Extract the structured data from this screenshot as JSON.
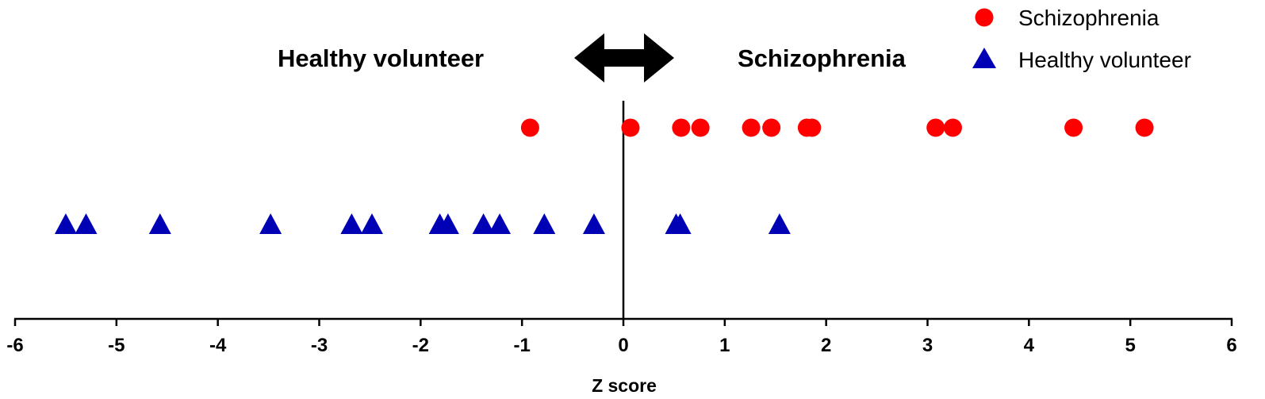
{
  "chart_data": {
    "type": "scatter",
    "title": "",
    "xlabel": "Z score",
    "ylabel": "",
    "xlim": [
      -6,
      6
    ],
    "x_ticks": [
      -6,
      -5,
      -4,
      -3,
      -2,
      -1,
      0,
      1,
      2,
      3,
      4,
      5,
      6
    ],
    "reference_line_x": 0,
    "grid": false,
    "legend_position": "top-right",
    "annotations": {
      "left": "Healthy volunteer",
      "right": "Schizophrenia",
      "arrow": "double-headed"
    },
    "series": [
      {
        "name": "Schizophrenia",
        "marker": "circle",
        "color": "#ff0000",
        "x": [
          -0.92,
          0.07,
          0.57,
          0.76,
          1.26,
          1.46,
          1.81,
          1.86,
          3.08,
          3.25,
          4.44,
          5.14
        ]
      },
      {
        "name": "Healthy volunteer",
        "marker": "triangle",
        "color": "#0000b4",
        "x": [
          -5.5,
          -5.3,
          -4.57,
          -3.48,
          -2.68,
          -2.48,
          -1.81,
          -1.73,
          -1.38,
          -1.22,
          -0.78,
          -0.29,
          0.52,
          0.56,
          1.54
        ]
      }
    ]
  }
}
